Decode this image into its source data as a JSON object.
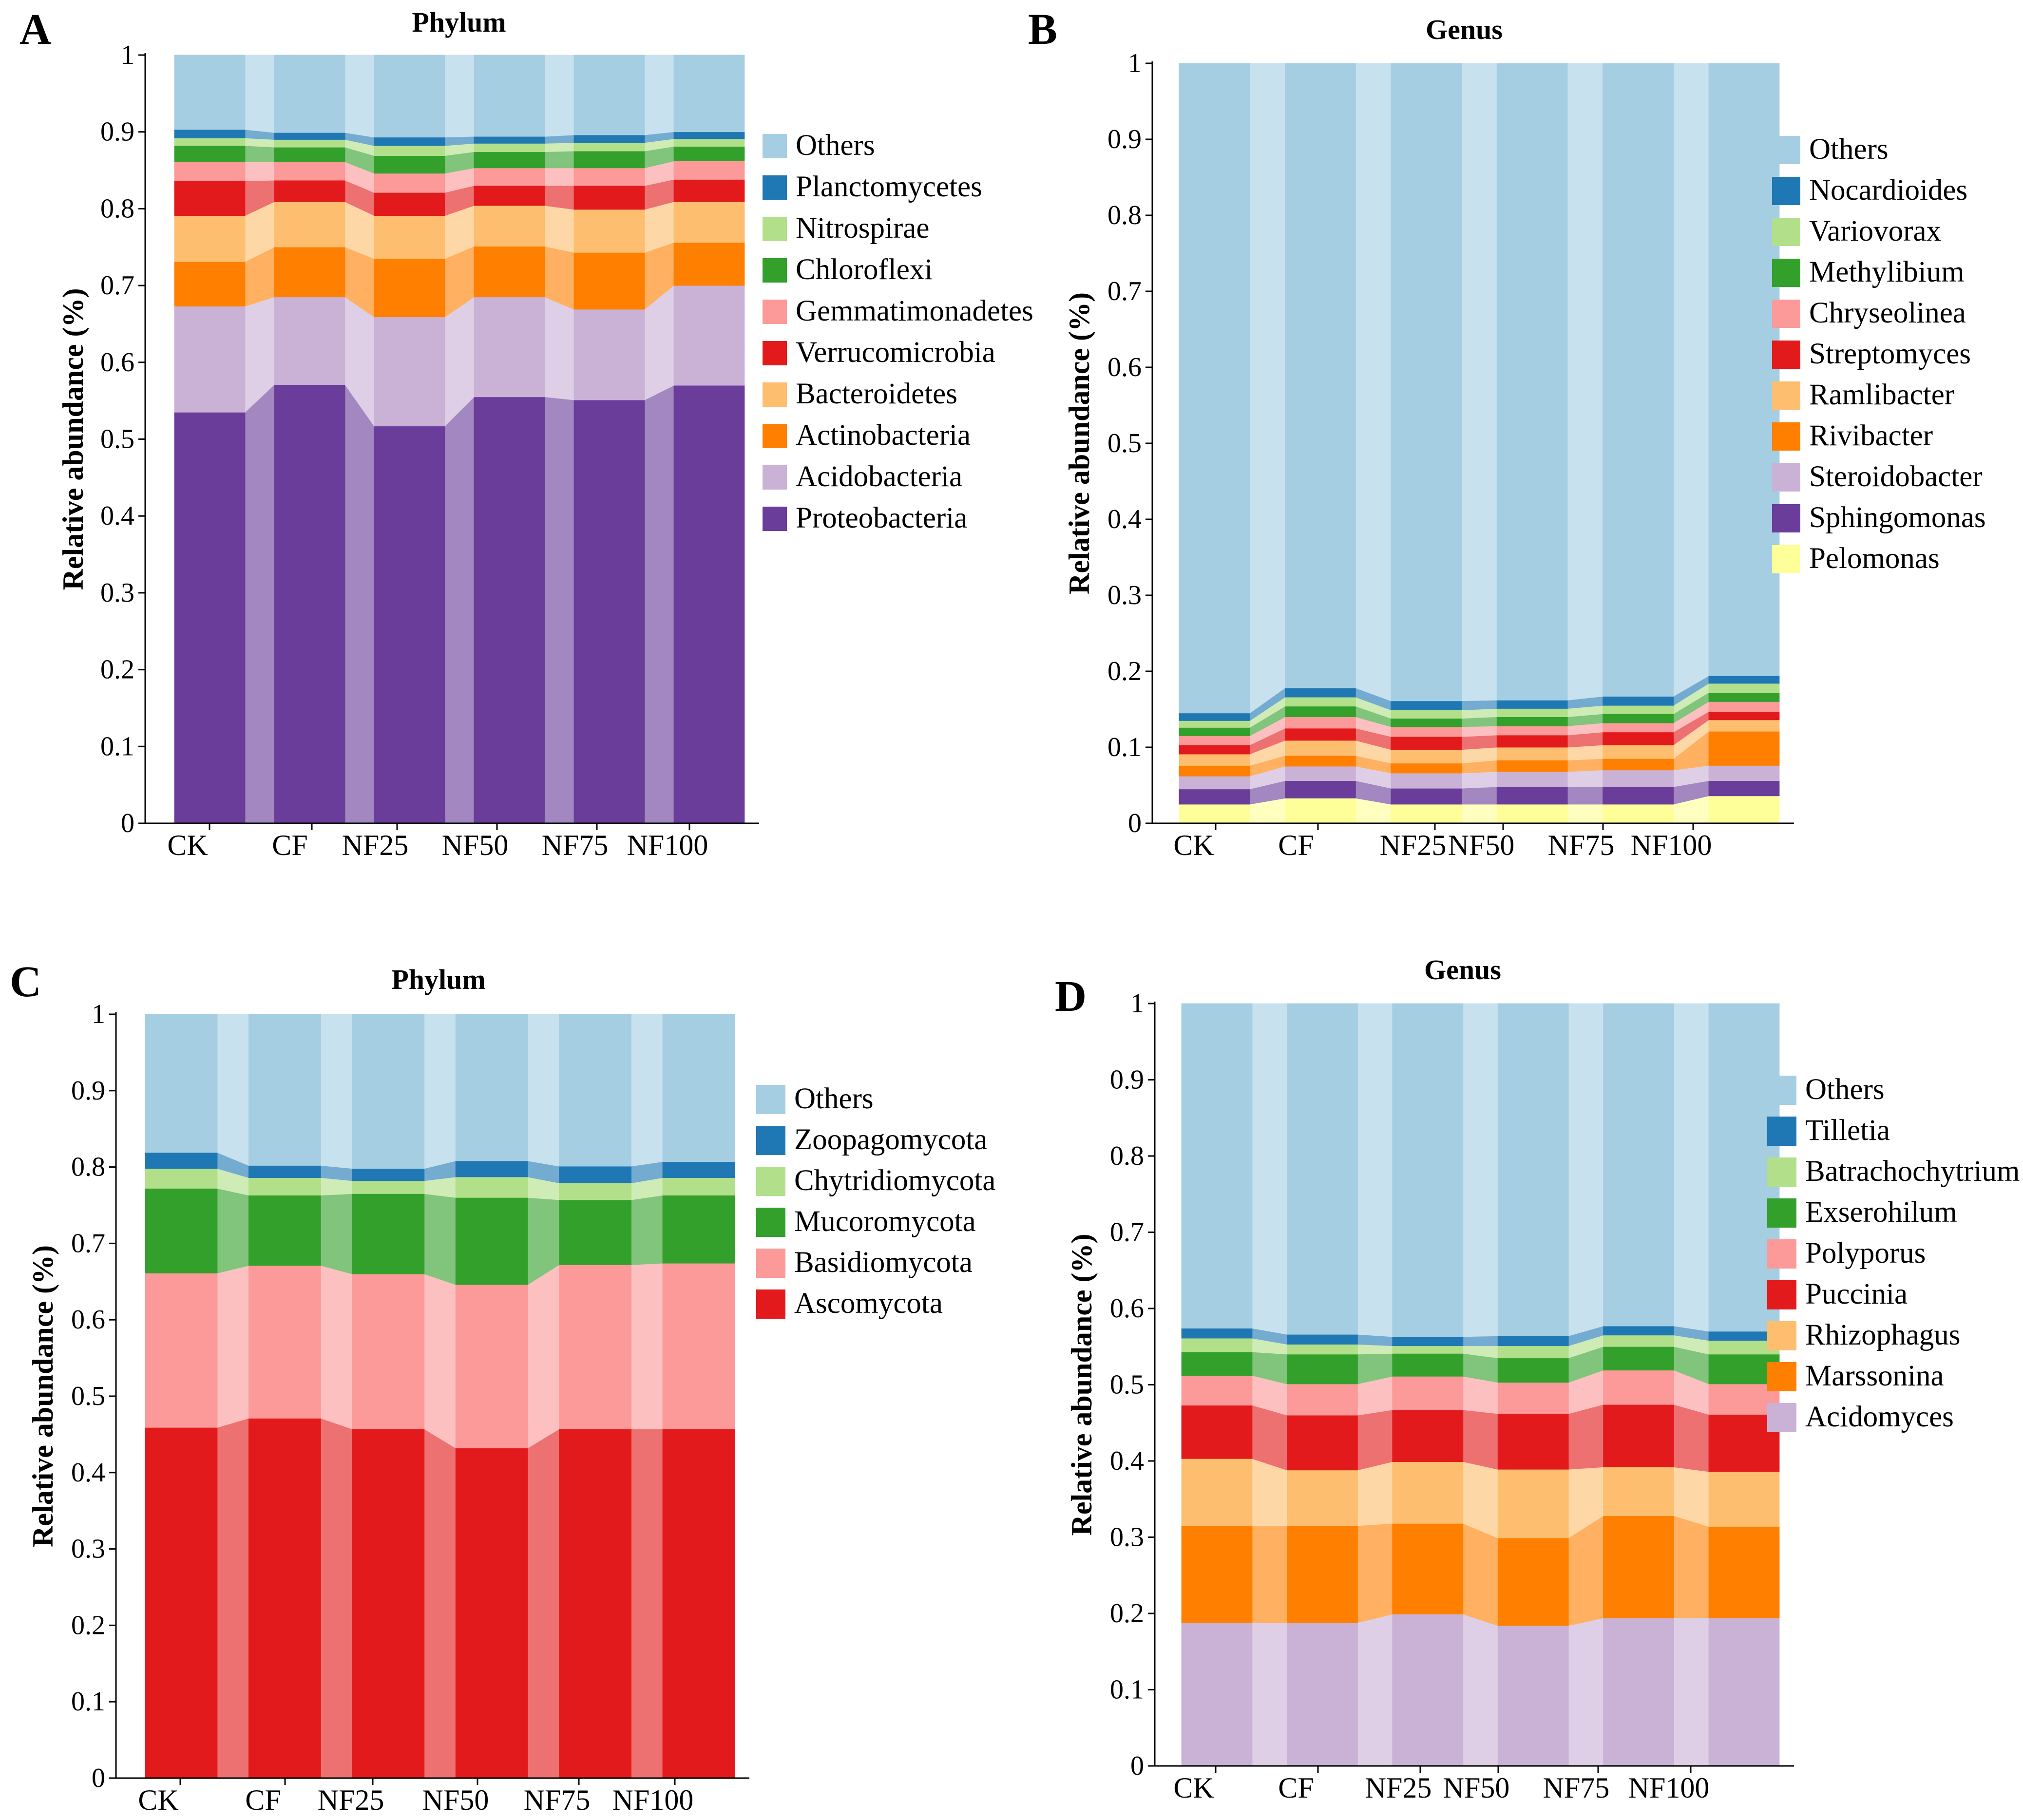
{
  "figure": {
    "panel_letters": [
      "A",
      "B",
      "C",
      "D"
    ]
  },
  "chart_data": [
    {
      "panel": "A",
      "type": "area",
      "title": "Phylum",
      "xlabel": "",
      "ylabel": "Relative abundance (%)",
      "ylim": [
        0,
        1
      ],
      "yticks": [
        "0",
        "0.1",
        "0.2",
        "0.3",
        "0.4",
        "0.5",
        "0.6",
        "0.7",
        "0.8",
        "0.9",
        "1"
      ],
      "categories": [
        "CK",
        "CF",
        "NF25",
        "NF50",
        "NF75",
        "NF100"
      ],
      "series": [
        {
          "name": "Proteobacteria",
          "color": "#6a3d9a",
          "values": [
            0.535,
            0.571,
            0.517,
            0.555,
            0.551,
            0.57
          ]
        },
        {
          "name": "Acidobacteria",
          "color": "#cab2d6",
          "values": [
            0.138,
            0.114,
            0.142,
            0.13,
            0.118,
            0.13
          ]
        },
        {
          "name": "Actinobacteria",
          "color": "#ff7f00",
          "values": [
            0.058,
            0.065,
            0.076,
            0.066,
            0.074,
            0.056
          ]
        },
        {
          "name": "Bacteroidetes",
          "color": "#fdbf6f",
          "values": [
            0.06,
            0.059,
            0.056,
            0.053,
            0.056,
            0.053
          ]
        },
        {
          "name": "Verrucomicrobia",
          "color": "#e31a1c",
          "values": [
            0.045,
            0.028,
            0.03,
            0.026,
            0.031,
            0.029
          ]
        },
        {
          "name": "Gemmatimonadetes",
          "color": "#fb9a99",
          "values": [
            0.025,
            0.024,
            0.025,
            0.023,
            0.023,
            0.024
          ]
        },
        {
          "name": "Chloroflexi",
          "color": "#33a02c",
          "values": [
            0.021,
            0.019,
            0.023,
            0.021,
            0.022,
            0.019
          ]
        },
        {
          "name": "Nitrospirae",
          "color": "#b2df8a",
          "values": [
            0.01,
            0.01,
            0.013,
            0.011,
            0.011,
            0.01
          ]
        },
        {
          "name": "Planctomycetes",
          "color": "#1f78b4",
          "values": [
            0.011,
            0.009,
            0.011,
            0.009,
            0.01,
            0.009
          ]
        },
        {
          "name": "Others",
          "color": "#a6cee3",
          "values": [
            0.097,
            0.101,
            0.107,
            0.106,
            0.104,
            0.1
          ]
        }
      ]
    },
    {
      "panel": "B",
      "type": "area",
      "title": "Genus",
      "xlabel": "",
      "ylabel": "Relative abundance (%)",
      "ylim": [
        0,
        1
      ],
      "yticks": [
        "0",
        "0.1",
        "0.2",
        "0.3",
        "0.4",
        "0.5",
        "0.6",
        "0.7",
        "0.8",
        "0.9",
        "1"
      ],
      "categories": [
        "CK",
        "CF",
        "NF25",
        "NF50",
        "NF75",
        "NF100"
      ],
      "series": [
        {
          "name": "Pelomonas",
          "color": "#ffff99",
          "values": [
            0.025,
            0.033,
            0.025,
            0.025,
            0.025,
            0.036
          ]
        },
        {
          "name": "Sphingomonas",
          "color": "#6a3d9a",
          "values": [
            0.02,
            0.023,
            0.021,
            0.023,
            0.023,
            0.02
          ]
        },
        {
          "name": "Steroidobacter",
          "color": "#cab2d6",
          "values": [
            0.017,
            0.019,
            0.02,
            0.02,
            0.022,
            0.02
          ]
        },
        {
          "name": "Rivibacter",
          "color": "#ff7f00",
          "values": [
            0.014,
            0.014,
            0.013,
            0.015,
            0.015,
            0.045
          ]
        },
        {
          "name": "Ramlibacter",
          "color": "#fdbf6f",
          "values": [
            0.015,
            0.02,
            0.018,
            0.017,
            0.018,
            0.015
          ]
        },
        {
          "name": "Streptomyces",
          "color": "#e31a1c",
          "values": [
            0.012,
            0.016,
            0.017,
            0.016,
            0.017,
            0.011
          ]
        },
        {
          "name": "Chryseolinea",
          "color": "#fb9a99",
          "values": [
            0.012,
            0.015,
            0.013,
            0.012,
            0.012,
            0.013
          ]
        },
        {
          "name": "Methylibium",
          "color": "#33a02c",
          "values": [
            0.011,
            0.014,
            0.011,
            0.012,
            0.012,
            0.012
          ]
        },
        {
          "name": "Variovorax",
          "color": "#b2df8a",
          "values": [
            0.009,
            0.012,
            0.011,
            0.011,
            0.011,
            0.012
          ]
        },
        {
          "name": "Nocardioides",
          "color": "#1f78b4",
          "values": [
            0.01,
            0.012,
            0.012,
            0.011,
            0.012,
            0.01
          ]
        },
        {
          "name": "Others",
          "color": "#a6cee3",
          "values": [
            0.855,
            0.822,
            0.839,
            0.838,
            0.833,
            0.806
          ]
        }
      ]
    },
    {
      "panel": "C",
      "type": "area",
      "title": "Phylum",
      "xlabel": "",
      "ylabel": "Relative abundance (%)",
      "ylim": [
        0,
        1
      ],
      "yticks": [
        "0",
        "0.1",
        "0.2",
        "0.3",
        "0.4",
        "0.5",
        "0.6",
        "0.7",
        "0.8",
        "0.9",
        "1"
      ],
      "categories": [
        "CK",
        "CF",
        "NF25",
        "NF50",
        "NF75",
        "NF100"
      ],
      "series": [
        {
          "name": "Ascomycota",
          "color": "#e31a1c",
          "values": [
            0.459,
            0.471,
            0.457,
            0.432,
            0.457,
            0.457
          ]
        },
        {
          "name": "Basidiomycota",
          "color": "#fb9a99",
          "values": [
            0.202,
            0.2,
            0.203,
            0.214,
            0.215,
            0.217
          ]
        },
        {
          "name": "Mucoromycota",
          "color": "#33a02c",
          "values": [
            0.111,
            0.092,
            0.105,
            0.114,
            0.085,
            0.089
          ]
        },
        {
          "name": "Chytridiomycota",
          "color": "#b2df8a",
          "values": [
            0.026,
            0.023,
            0.017,
            0.027,
            0.022,
            0.023
          ]
        },
        {
          "name": "Zoopagomycota",
          "color": "#1f78b4",
          "values": [
            0.021,
            0.016,
            0.016,
            0.021,
            0.022,
            0.021
          ]
        },
        {
          "name": "Others",
          "color": "#a6cee3",
          "values": [
            0.181,
            0.198,
            0.202,
            0.192,
            0.199,
            0.193
          ]
        }
      ]
    },
    {
      "panel": "D",
      "type": "area",
      "title": "Genus",
      "xlabel": "",
      "ylabel": "Relative abundance (%)",
      "ylim": [
        0,
        1
      ],
      "yticks": [
        "0",
        "0.1",
        "0.2",
        "0.3",
        "0.4",
        "0.5",
        "0.6",
        "0.7",
        "0.8",
        "0.9",
        "1"
      ],
      "categories": [
        "CK",
        "CF",
        "NF25",
        "NF50",
        "NF75",
        "NF100"
      ],
      "series": [
        {
          "name": "Acidomyces",
          "color": "#cab2d6",
          "values": [
            0.188,
            0.188,
            0.199,
            0.184,
            0.194,
            0.194
          ]
        },
        {
          "name": "Marssonina",
          "color": "#ff7f00",
          "values": [
            0.127,
            0.127,
            0.119,
            0.115,
            0.134,
            0.12
          ]
        },
        {
          "name": "Rhizophagus",
          "color": "#fdbf6f",
          "values": [
            0.088,
            0.073,
            0.081,
            0.09,
            0.064,
            0.072
          ]
        },
        {
          "name": "Puccinia",
          "color": "#e31a1c",
          "values": [
            0.07,
            0.072,
            0.068,
            0.073,
            0.082,
            0.075
          ]
        },
        {
          "name": "Polyporus",
          "color": "#fb9a99",
          "values": [
            0.039,
            0.041,
            0.044,
            0.041,
            0.045,
            0.04
          ]
        },
        {
          "name": "Exserohilum",
          "color": "#33a02c",
          "values": [
            0.031,
            0.039,
            0.03,
            0.032,
            0.031,
            0.039
          ]
        },
        {
          "name": "Batrachochytrium",
          "color": "#b2df8a",
          "values": [
            0.018,
            0.013,
            0.01,
            0.016,
            0.015,
            0.018
          ]
        },
        {
          "name": "Tilletia",
          "color": "#1f78b4",
          "values": [
            0.013,
            0.013,
            0.012,
            0.013,
            0.012,
            0.012
          ]
        },
        {
          "name": "Others",
          "color": "#a6cee3",
          "values": [
            0.426,
            0.434,
            0.437,
            0.436,
            0.423,
            0.43
          ]
        }
      ]
    }
  ]
}
